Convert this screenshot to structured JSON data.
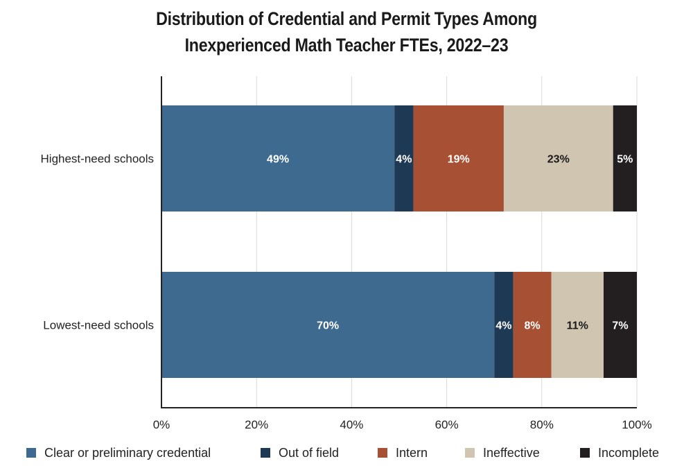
{
  "chart_data": {
    "type": "bar",
    "orientation": "horizontal",
    "stacked": true,
    "title": [
      "Distribution of Credential and Permit Types Among",
      "Inexperienced Math Teacher FTEs, 2022–23"
    ],
    "categories": [
      "Highest-need schools",
      "Lowest-need schools"
    ],
    "series": [
      {
        "name": "Clear or preliminary credential",
        "color": "#3f6a90",
        "label_color": "#ffffff",
        "values": [
          49,
          70
        ]
      },
      {
        "name": "Out of field",
        "color": "#1e3954",
        "label_color": "#ffffff",
        "values": [
          4,
          4
        ]
      },
      {
        "name": "Intern",
        "color": "#a85034",
        "label_color": "#ffffff",
        "values": [
          19,
          8
        ]
      },
      {
        "name": "Ineffective",
        "color": "#cfc5b0",
        "label_color": "#1a1a1a",
        "values": [
          23,
          11
        ]
      },
      {
        "name": "Incomplete",
        "color": "#231f20",
        "label_color": "#ffffff",
        "values": [
          5,
          7
        ]
      }
    ],
    "data_labels": [
      [
        "49%",
        "4%",
        "19%",
        "23%",
        "5%"
      ],
      [
        "70%",
        "4%",
        "8%",
        "11%",
        "7%"
      ]
    ],
    "xlim": [
      0,
      100
    ],
    "xticks": [
      "0%",
      "20%",
      "40%",
      "60%",
      "80%",
      "100%"
    ],
    "xlabel": "",
    "ylabel": "",
    "grid": "vertical",
    "legend_position": "bottom"
  }
}
